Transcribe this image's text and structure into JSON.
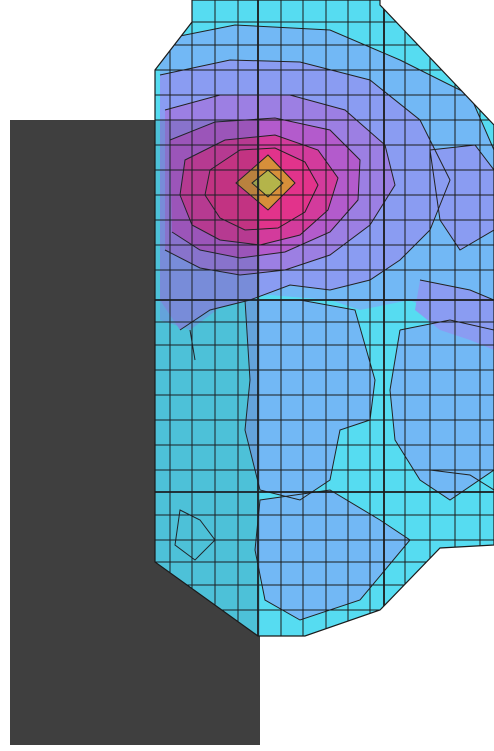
{
  "figure": {
    "colors": {
      "background": "#ffffff",
      "dark_panel": "#3f3f3f",
      "grid_lines": "#1b1b1b",
      "contour_lines": "#222222",
      "level_cyan": "#56dcf1",
      "level_light_blue": "#72b8f5",
      "level_periwinkle": "#8a9cf2",
      "level_violet": "#9c7fe3",
      "level_purple": "#b35bcc",
      "level_magenta": "#d33b9c",
      "level_pink": "#e2338b",
      "peak_orange": "#d78f3a",
      "peak_yellow": "#b4b44a"
    },
    "overlay_shading": "#1c3a5a"
  }
}
